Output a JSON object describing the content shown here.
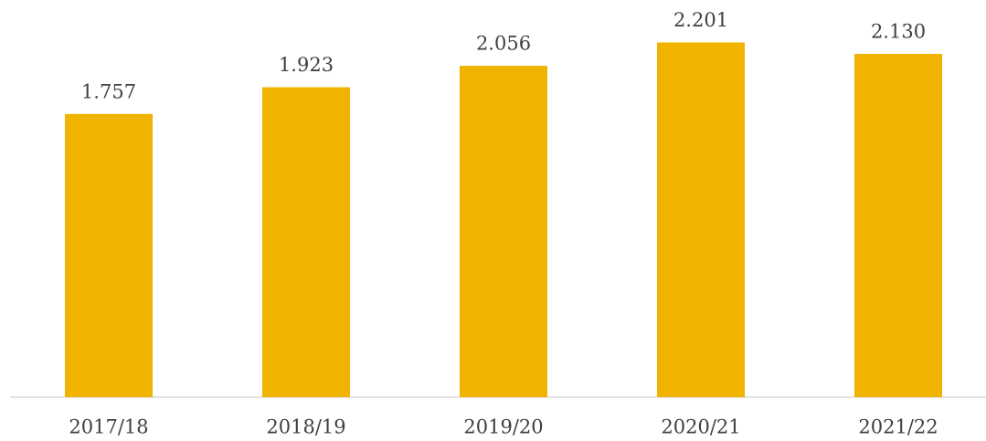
{
  "chart_data": {
    "type": "bar",
    "categories": [
      "2017/18",
      "2018/19",
      "2019/20",
      "2020/21",
      "2021/22"
    ],
    "values": [
      1757,
      1923,
      2056,
      2201,
      2130
    ],
    "value_labels": [
      "1.757",
      "1.923",
      "2.056",
      "2.201",
      "2.130"
    ],
    "color": "#f0b400",
    "ylim": [
      0,
      2300
    ]
  }
}
